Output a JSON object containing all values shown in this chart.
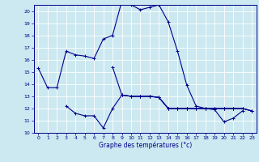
{
  "xlabel": "Graphe des températures (°c)",
  "background_color": "#cce8f0",
  "grid_color": "#ffffff",
  "line_color": "#00008b",
  "xlim": [
    -0.5,
    23.5
  ],
  "ylim": [
    10,
    20.5
  ],
  "yticks": [
    10,
    11,
    12,
    13,
    14,
    15,
    16,
    17,
    18,
    19,
    20
  ],
  "xticks": [
    0,
    1,
    2,
    3,
    4,
    5,
    6,
    7,
    8,
    9,
    10,
    11,
    12,
    13,
    14,
    15,
    16,
    17,
    18,
    19,
    20,
    21,
    22,
    23
  ],
  "series1_x": [
    0,
    1,
    2,
    3,
    4,
    5,
    6,
    7,
    8,
    9,
    10,
    11,
    12,
    13,
    14,
    15,
    16,
    17,
    18,
    19,
    20,
    21,
    22
  ],
  "series1_y": [
    15.3,
    13.7,
    13.7,
    16.7,
    16.4,
    16.3,
    16.1,
    17.7,
    18.0,
    20.8,
    20.5,
    20.1,
    20.3,
    20.5,
    19.1,
    16.7,
    13.9,
    12.2,
    12.0,
    11.9,
    10.9,
    11.2,
    11.8
  ],
  "series2_x": [
    3,
    4,
    5,
    6,
    7,
    8,
    9,
    10,
    11,
    12,
    13,
    14,
    15,
    16,
    17,
    18,
    19,
    20,
    21,
    22,
    23
  ],
  "series2_y": [
    12.2,
    11.6,
    11.4,
    11.4,
    10.4,
    12.0,
    13.1,
    13.0,
    13.0,
    13.0,
    12.9,
    12.0,
    12.0,
    12.0,
    12.0,
    12.0,
    12.0,
    12.0,
    12.0,
    12.0,
    11.8
  ],
  "series3_x": [
    9,
    10,
    11,
    12,
    13,
    14,
    15,
    16,
    17,
    18,
    19,
    20,
    21,
    22,
    23
  ],
  "series3_y": [
    13.1,
    13.0,
    13.0,
    13.0,
    12.9,
    12.0,
    12.0,
    12.0,
    12.0,
    12.0,
    12.0,
    12.0,
    12.0,
    12.0,
    11.8
  ],
  "series4_x": [
    8,
    9,
    10,
    11,
    12,
    13,
    14,
    15,
    16,
    17,
    18,
    19,
    20,
    21,
    22,
    23
  ],
  "series4_y": [
    15.4,
    13.1,
    13.0,
    13.0,
    13.0,
    12.9,
    12.0,
    12.0,
    12.0,
    12.0,
    12.0,
    12.0,
    12.0,
    12.0,
    12.0,
    11.8
  ],
  "markersize": 3,
  "linewidth": 0.8
}
